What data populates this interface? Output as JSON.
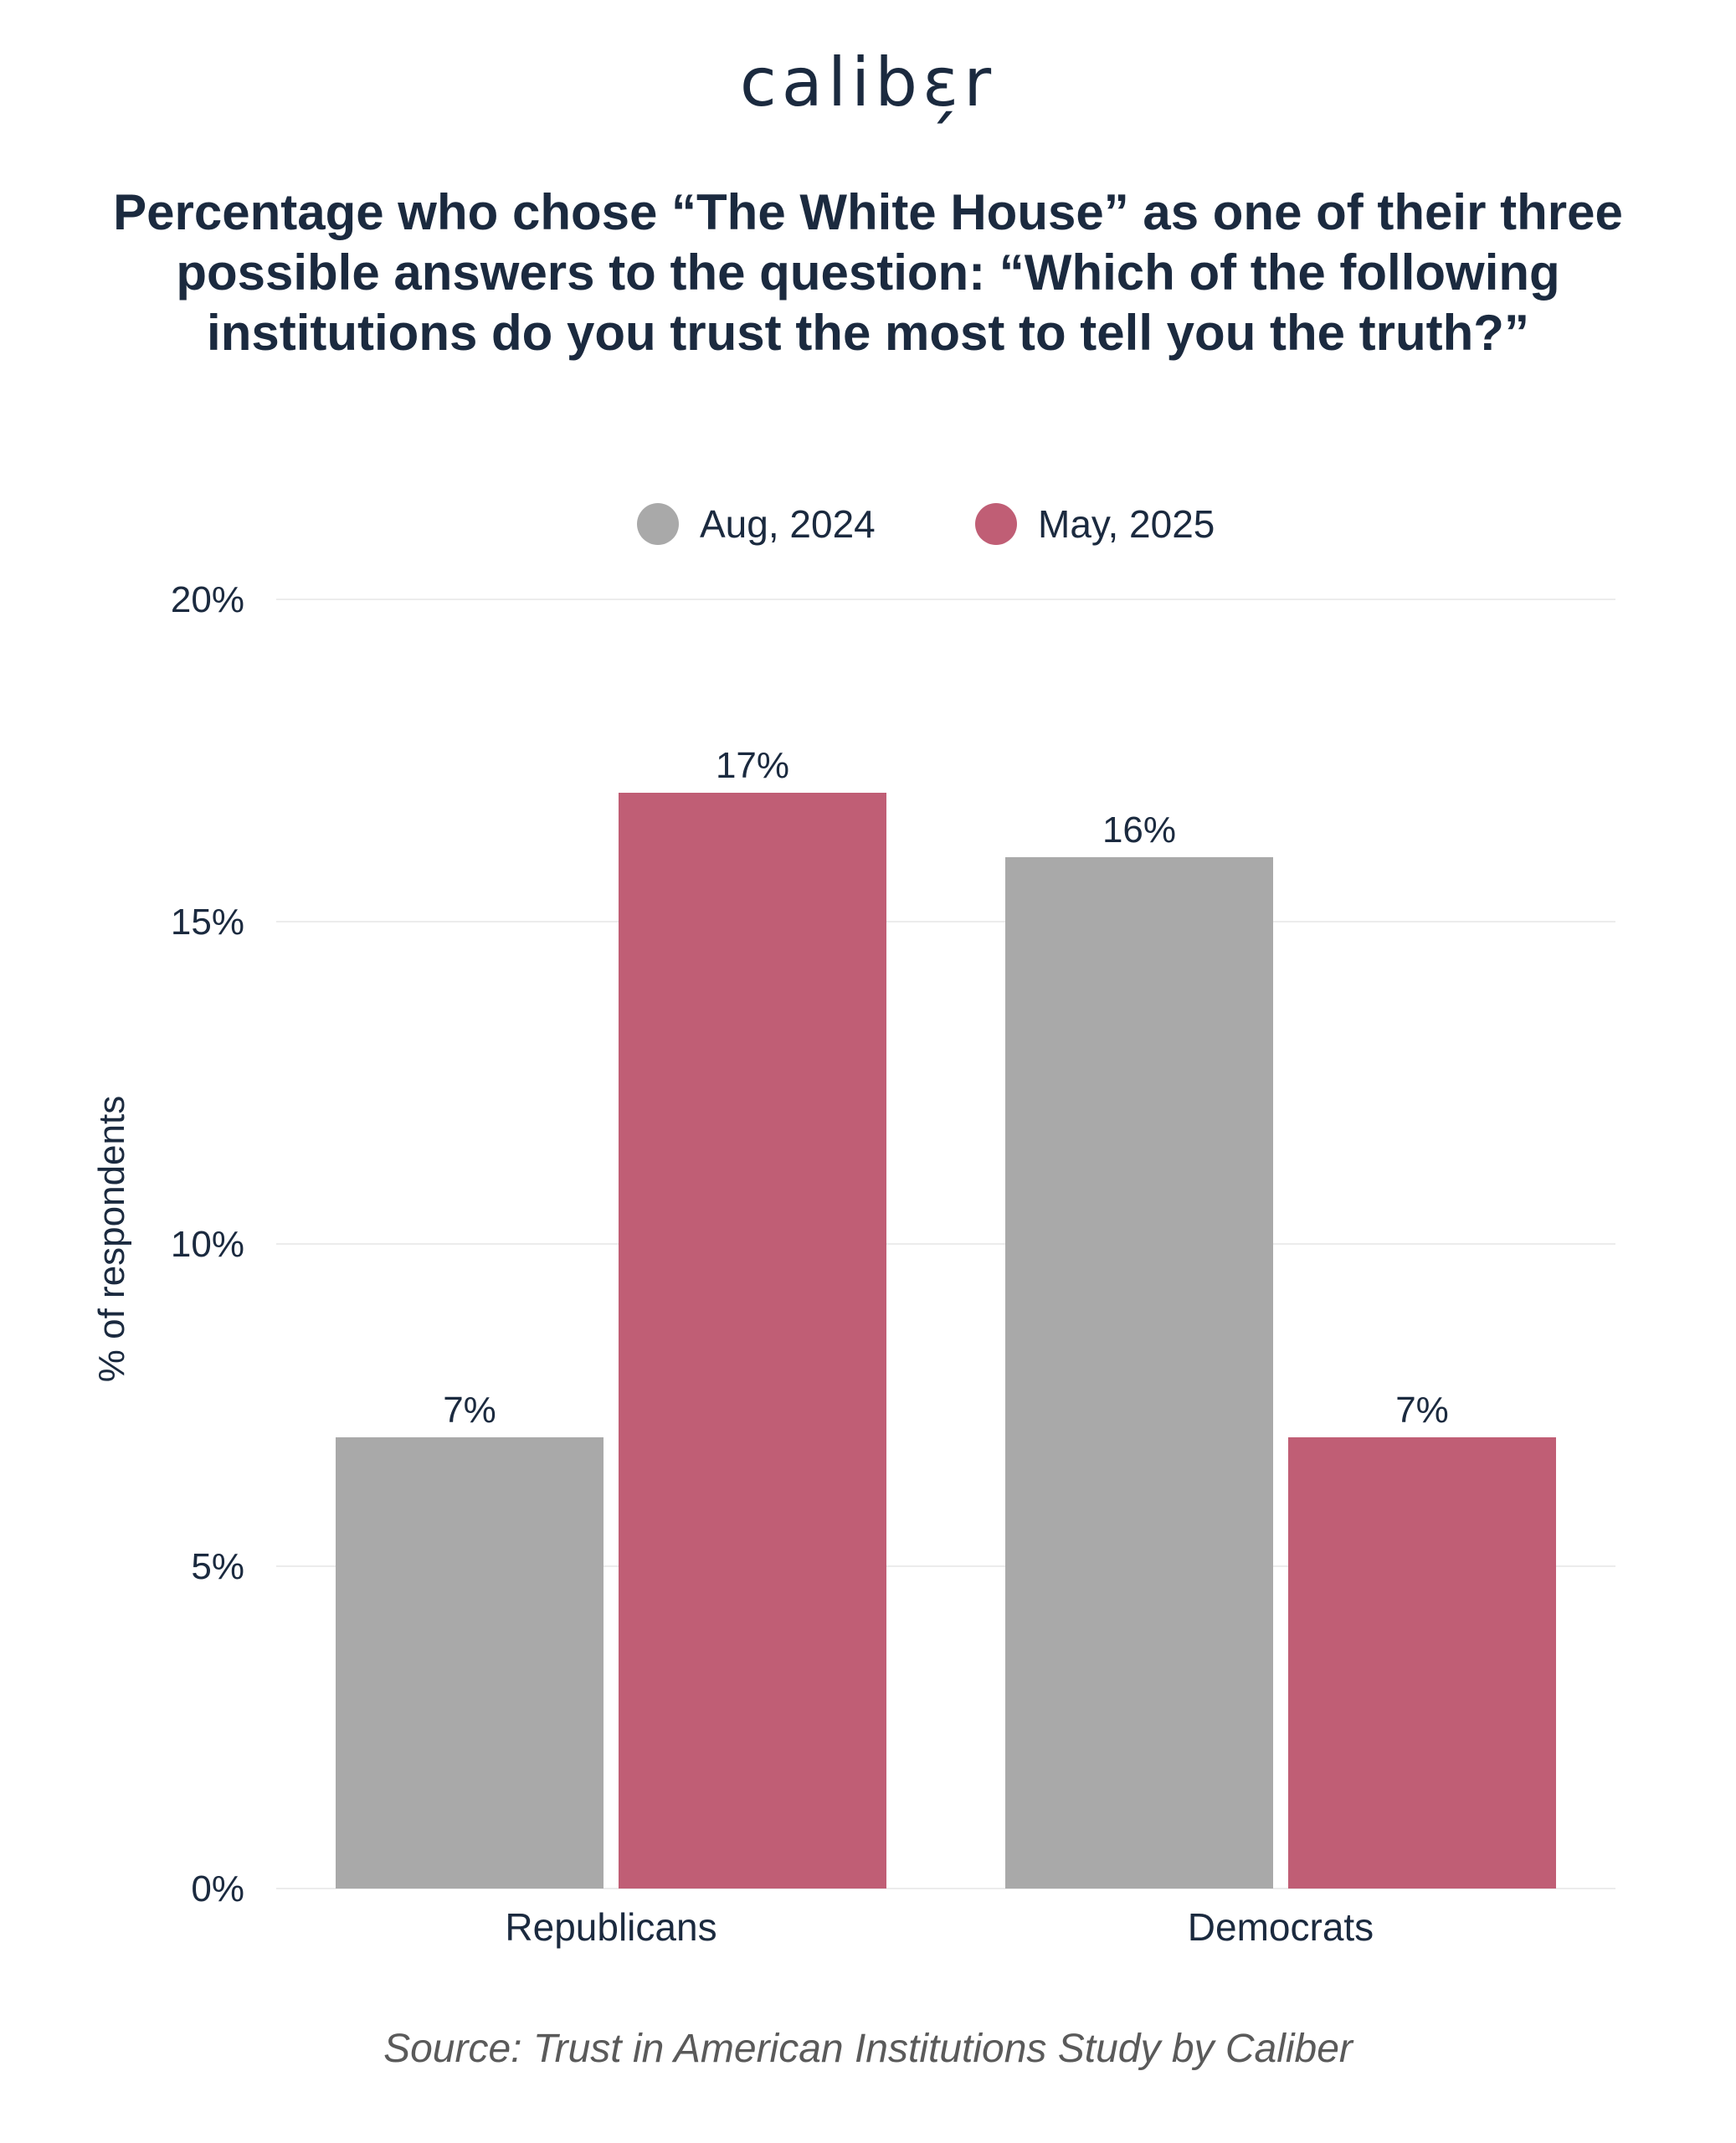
{
  "brand": {
    "logo_text": "calibɛ̗r"
  },
  "colors": {
    "text": "#1b2a3f",
    "grid": "#ececec",
    "series_aug_2024": "#a9a9a9",
    "series_may_2025": "#c05e75"
  },
  "chart_data": {
    "type": "bar",
    "title": "Percentage who chose “The White House” as one of their three possible answers to the question: “Which of the following institutions do you trust the most to tell you the truth?”",
    "xlabel": "",
    "ylabel": "% of respondents",
    "ylim": [
      0,
      20
    ],
    "yticks": [
      "0%",
      "5%",
      "10%",
      "15%",
      "20%"
    ],
    "ytick_values": [
      0,
      5,
      10,
      15,
      20
    ],
    "categories": [
      "Republicans",
      "Democrats"
    ],
    "series": [
      {
        "name": "Aug, 2024",
        "color": "#a9a9a9",
        "values": [
          7,
          16
        ],
        "labels": [
          "7%",
          "16%"
        ]
      },
      {
        "name": "May, 2025",
        "color": "#c05e75",
        "values": [
          17,
          7
        ],
        "labels": [
          "17%",
          "7%"
        ]
      }
    ],
    "legend_position": "top-center",
    "grid": true
  },
  "source": "Source: Trust in American Institutions Study by Caliber"
}
